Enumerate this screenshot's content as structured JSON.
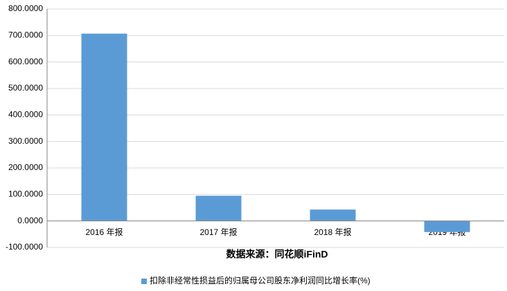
{
  "chart_data": {
    "type": "bar",
    "source": "数据来源：同花顺iFinD",
    "categories": [
      "2016 年报",
      "2017 年报",
      "2018 年报",
      "2019 年报"
    ],
    "series": [
      {
        "name": "扣除非经常性损益后的归属母公司股东净利润同比增长率(%)",
        "color": "#5b9bd5",
        "values": [
          707,
          95,
          43,
          -42
        ]
      }
    ],
    "ylim": [
      -100,
      800
    ],
    "yticks": [
      {
        "value": -100,
        "label": "-100.0000"
      },
      {
        "value": 0,
        "label": "0.0000"
      },
      {
        "value": 100,
        "label": "100.0000"
      },
      {
        "value": 200,
        "label": "200.0000"
      },
      {
        "value": 300,
        "label": "300.0000"
      },
      {
        "value": 400,
        "label": "400.0000"
      },
      {
        "value": 500,
        "label": "500.0000"
      },
      {
        "value": 600,
        "label": "600.0000"
      },
      {
        "value": 700,
        "label": "700.0000"
      },
      {
        "value": 800,
        "label": "800.0000"
      }
    ],
    "grid": true,
    "legend": "bottom"
  }
}
